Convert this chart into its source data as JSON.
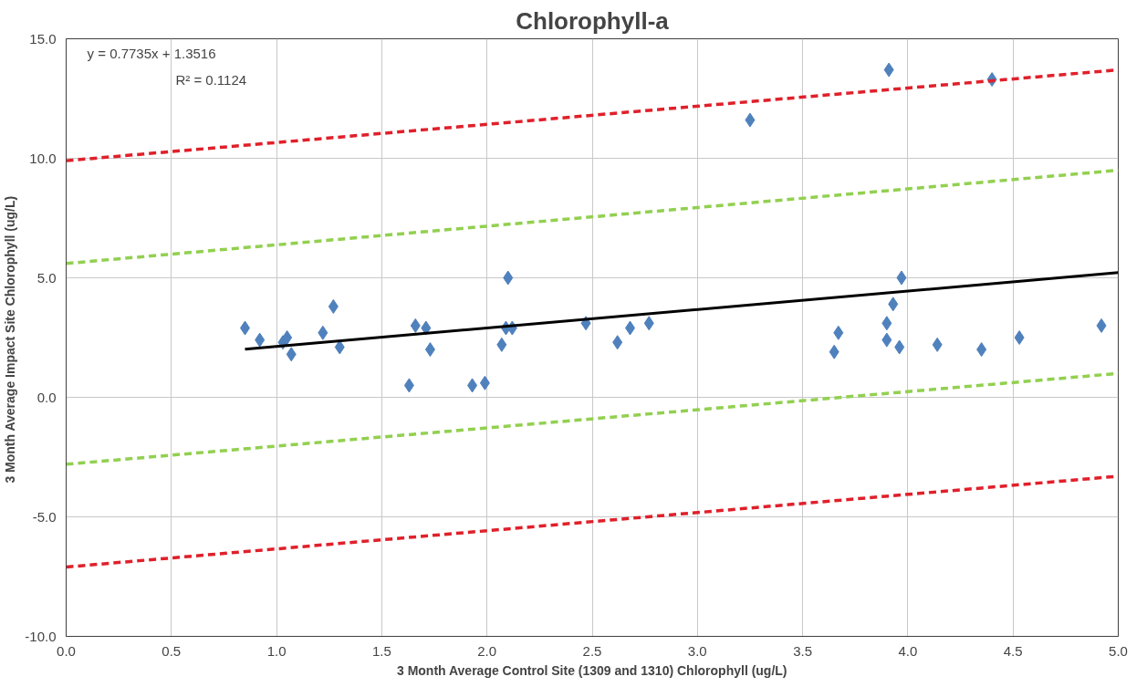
{
  "chart_data": {
    "type": "scatter",
    "title": "Chlorophyll-a",
    "xlabel": "3 Month Average Control Site (1309 and 1310) Chlorophyll (ug/L)",
    "ylabel": "3 Month Average Impact Site Chlorophyll  (ug/L)",
    "xlim": [
      0,
      5
    ],
    "ylim": [
      -10,
      15
    ],
    "xticks": [
      {
        "value": 0,
        "label": "0.0"
      },
      {
        "value": 0.5,
        "label": "0.5"
      },
      {
        "value": 1,
        "label": "1.0"
      },
      {
        "value": 1.5,
        "label": "1.5"
      },
      {
        "value": 2,
        "label": "2.0"
      },
      {
        "value": 2.5,
        "label": "2.5"
      },
      {
        "value": 3,
        "label": "3.0"
      },
      {
        "value": 3.5,
        "label": "3.5"
      },
      {
        "value": 4,
        "label": "4.0"
      },
      {
        "value": 4.5,
        "label": "4.5"
      },
      {
        "value": 5,
        "label": "5.0"
      }
    ],
    "yticks": [
      {
        "value": -10,
        "label": "-10.0"
      },
      {
        "value": -5,
        "label": "-5.0"
      },
      {
        "value": 0,
        "label": "0.0"
      },
      {
        "value": 5,
        "label": "5.0"
      },
      {
        "value": 10,
        "label": "10.0"
      },
      {
        "value": 15,
        "label": "15.0"
      }
    ],
    "grid": true,
    "annotations": [
      "y = 0.7735x + 1.3516",
      "R² = 0.1124"
    ],
    "series": [
      {
        "marker": "diamond",
        "color": "#4f81bd",
        "x": [
          0.85,
          0.92,
          1.03,
          1.05,
          1.07,
          1.22,
          1.27,
          1.3,
          1.63,
          1.66,
          1.71,
          1.73,
          1.93,
          1.99,
          2.07,
          2.09,
          2.1,
          2.12,
          2.47,
          2.62,
          2.68,
          2.77,
          3.25,
          3.65,
          3.67,
          3.9,
          3.9,
          3.91,
          3.93,
          3.96,
          3.97,
          4.14,
          4.35,
          4.4,
          4.53,
          4.92
        ],
        "values": [
          2.9,
          2.4,
          2.3,
          2.5,
          1.8,
          2.7,
          3.8,
          2.1,
          0.5,
          3.0,
          2.9,
          2.0,
          0.5,
          0.6,
          2.2,
          2.9,
          5.0,
          2.9,
          3.1,
          2.3,
          2.9,
          3.1,
          11.6,
          1.9,
          2.7,
          3.1,
          2.4,
          13.7,
          3.9,
          2.1,
          5.0,
          2.2,
          2.0,
          13.3,
          2.5,
          3.0
        ]
      },
      {
        "type": "line",
        "line_style": "solid",
        "color": "#000000",
        "x": [
          0.85,
          5
        ],
        "values": [
          2.01,
          5.22
        ]
      },
      {
        "type": "line",
        "line_style": "dashed",
        "color": "#92d050",
        "x": [
          0,
          5
        ],
        "values": [
          5.6,
          9.5
        ]
      },
      {
        "type": "line",
        "line_style": "dashed",
        "color": "#92d050",
        "x": [
          0,
          5
        ],
        "values": [
          -2.8,
          1.0
        ]
      },
      {
        "type": "line",
        "line_style": "dashed",
        "color": "#e0202a",
        "x": [
          0,
          5
        ],
        "values": [
          9.9,
          13.7
        ]
      },
      {
        "type": "line",
        "line_style": "dashed",
        "color": "#e0202a",
        "x": [
          0,
          5
        ],
        "values": [
          -7.1,
          -3.3
        ]
      }
    ]
  }
}
